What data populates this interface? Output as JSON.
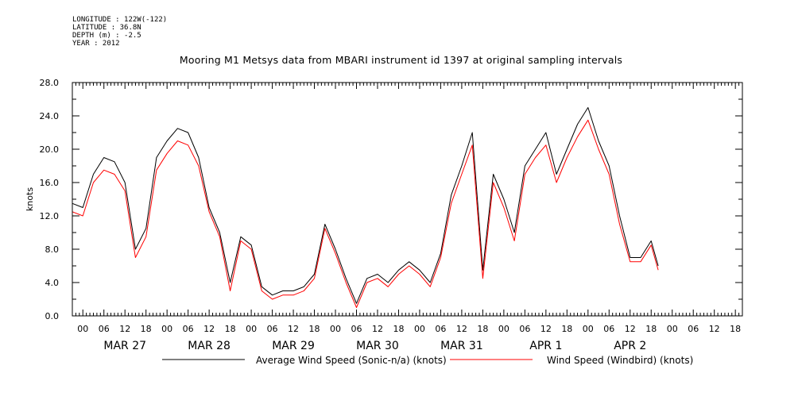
{
  "header": {
    "longitude": "LONGITUDE : 122W(-122)",
    "latitude": "LATITUDE : 36.8N",
    "depth": "DEPTH (m) : -2.5",
    "year": "YEAR : 2012"
  },
  "chart_data": {
    "type": "line",
    "title": "Mooring M1 Metsys data from MBARI instrument id 1397 at original sampling intervals",
    "ylabel": "knots",
    "ylim": [
      0,
      28
    ],
    "yticks": [
      "0.0",
      "4.0",
      "8.0",
      "12.0",
      "16.0",
      "20.0",
      "24.0",
      "28.0"
    ],
    "xlim_hours": [
      -3,
      20
    ],
    "x_range": [
      "MAR 26 21:00",
      "APR 2 20:00"
    ],
    "hour_tick_labels": [
      "00",
      "06",
      "12",
      "18"
    ],
    "day_labels": [
      "MAR 27",
      "MAR 28",
      "MAR 29",
      "MAR 30",
      "MAR 31",
      "APR  1",
      "APR  2"
    ],
    "grid": false,
    "legend_position": "bottom",
    "series": [
      {
        "name": "Average Wind Speed (Sonic-n/a) (knots)",
        "color": "#000000",
        "x": [
          "MAR 26 21:00",
          "MAR 27 00:00",
          "MAR 27 03:00",
          "MAR 27 06:00",
          "MAR 27 09:00",
          "MAR 27 12:00",
          "MAR 27 15:00",
          "MAR 27 18:00",
          "MAR 27 21:00",
          "MAR 28 00:00",
          "MAR 28 03:00",
          "MAR 28 06:00",
          "MAR 28 09:00",
          "MAR 28 12:00",
          "MAR 28 15:00",
          "MAR 28 18:00",
          "MAR 28 21:00",
          "MAR 29 00:00",
          "MAR 29 03:00",
          "MAR 29 06:00",
          "MAR 29 09:00",
          "MAR 29 12:00",
          "MAR 29 15:00",
          "MAR 29 18:00",
          "MAR 29 21:00",
          "MAR 30 00:00",
          "MAR 30 03:00",
          "MAR 30 06:00",
          "MAR 30 09:00",
          "MAR 30 12:00",
          "MAR 30 15:00",
          "MAR 30 18:00",
          "MAR 30 21:00",
          "MAR 31 00:00",
          "MAR 31 03:00",
          "MAR 31 06:00",
          "MAR 31 09:00",
          "MAR 31 12:00",
          "MAR 31 15:00",
          "MAR 31 18:00",
          "MAR 31 21:00",
          "APR 1 00:00",
          "APR 1 03:00",
          "APR 1 06:00",
          "APR 1 09:00",
          "APR 1 12:00",
          "APR 1 15:00",
          "APR 1 18:00",
          "APR 1 21:00",
          "APR 2 00:00",
          "APR 2 03:00",
          "APR 2 06:00",
          "APR 2 09:00",
          "APR 2 12:00",
          "APR 2 15:00",
          "APR 2 18:00",
          "APR 2 20:00"
        ],
        "values": [
          13.5,
          13.0,
          17.0,
          19.0,
          18.5,
          16.0,
          8.0,
          10.5,
          19.0,
          21.0,
          22.5,
          22.0,
          19.0,
          13.0,
          10.0,
          4.0,
          9.5,
          8.5,
          3.5,
          2.5,
          3.0,
          3.0,
          3.5,
          5.0,
          11.0,
          8.0,
          4.5,
          1.5,
          4.5,
          5.0,
          4.0,
          5.5,
          6.5,
          5.5,
          4.0,
          7.5,
          14.5,
          18.0,
          22.0,
          5.5,
          17.0,
          14.0,
          10.0,
          18.0,
          20.0,
          22.0,
          17.0,
          20.0,
          23.0,
          25.0,
          21.0,
          18.0,
          12.0,
          7.0,
          7.0,
          9.0,
          6.0
        ]
      },
      {
        "name": "Wind Speed (Windbird) (knots)",
        "color": "#ff0000",
        "x": [
          "MAR 26 21:00",
          "MAR 27 00:00",
          "MAR 27 03:00",
          "MAR 27 06:00",
          "MAR 27 09:00",
          "MAR 27 12:00",
          "MAR 27 15:00",
          "MAR 27 18:00",
          "MAR 27 21:00",
          "MAR 28 00:00",
          "MAR 28 03:00",
          "MAR 28 06:00",
          "MAR 28 09:00",
          "MAR 28 12:00",
          "MAR 28 15:00",
          "MAR 28 18:00",
          "MAR 28 21:00",
          "MAR 29 00:00",
          "MAR 29 03:00",
          "MAR 29 06:00",
          "MAR 29 09:00",
          "MAR 29 12:00",
          "MAR 29 15:00",
          "MAR 29 18:00",
          "MAR 29 21:00",
          "MAR 30 00:00",
          "MAR 30 03:00",
          "MAR 30 06:00",
          "MAR 30 09:00",
          "MAR 30 12:00",
          "MAR 30 15:00",
          "MAR 30 18:00",
          "MAR 30 21:00",
          "MAR 31 00:00",
          "MAR 31 03:00",
          "MAR 31 06:00",
          "MAR 31 09:00",
          "MAR 31 12:00",
          "MAR 31 15:00",
          "MAR 31 18:00",
          "MAR 31 21:00",
          "APR 1 00:00",
          "APR 1 03:00",
          "APR 1 06:00",
          "APR 1 09:00",
          "APR 1 12:00",
          "APR 1 15:00",
          "APR 1 18:00",
          "APR 1 21:00",
          "APR 2 00:00",
          "APR 2 03:00",
          "APR 2 06:00",
          "APR 2 09:00",
          "APR 2 12:00",
          "APR 2 15:00",
          "APR 2 18:00",
          "APR 2 20:00"
        ],
        "values": [
          12.5,
          12.0,
          16.0,
          17.5,
          17.0,
          15.0,
          7.0,
          9.5,
          17.5,
          19.5,
          21.0,
          20.5,
          18.0,
          12.5,
          9.5,
          3.0,
          9.0,
          8.0,
          3.0,
          2.0,
          2.5,
          2.5,
          3.0,
          4.5,
          10.5,
          7.5,
          4.0,
          1.0,
          4.0,
          4.5,
          3.5,
          5.0,
          6.0,
          5.0,
          3.5,
          7.0,
          13.5,
          17.0,
          20.5,
          4.5,
          16.0,
          13.0,
          9.0,
          17.0,
          19.0,
          20.5,
          16.0,
          19.0,
          21.5,
          23.5,
          20.0,
          17.0,
          11.0,
          6.5,
          6.5,
          8.5,
          5.5
        ]
      }
    ]
  }
}
